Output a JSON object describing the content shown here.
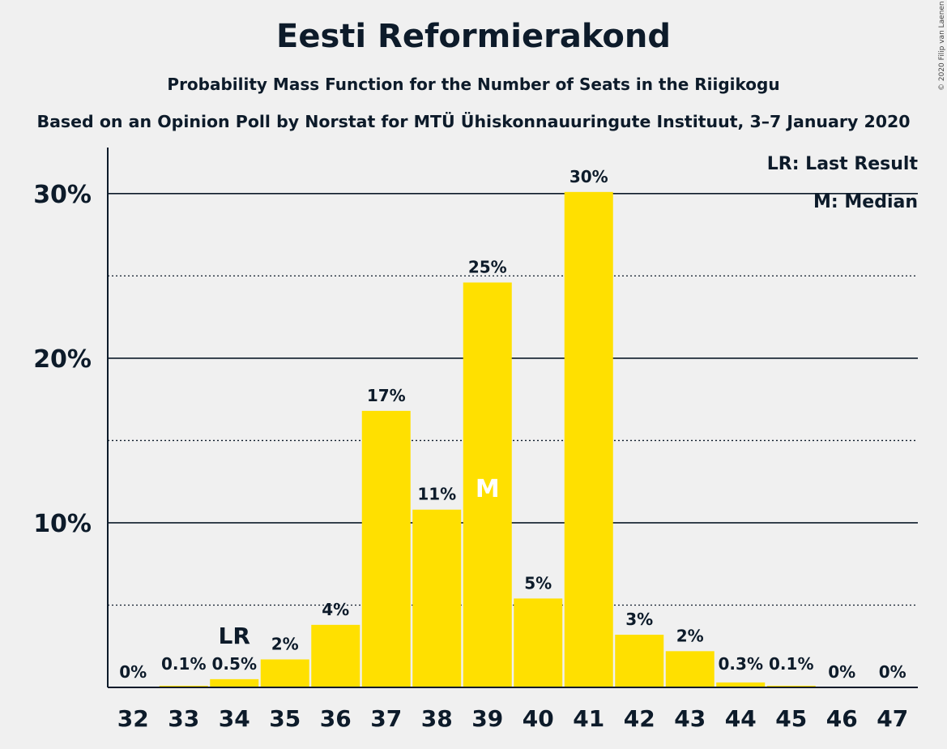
{
  "header": {
    "title": "Eesti Reformierakond",
    "subtitle": "Probability Mass Function for the Number of Seats in the Riigikogu",
    "source": "Based on an Opinion Poll by Norstat for MTÜ Ühiskonnauuringute Instituut, 3–7 January 2020",
    "copyright": "© 2020 Filip van Laenen"
  },
  "legend": {
    "lr": "LR: Last Result",
    "median": "M: Median"
  },
  "chart_data": {
    "type": "bar",
    "title": "Eesti Reformierakond",
    "subtitle": "Probability Mass Function for the Number of Seats in the Riigikogu",
    "xlabel": "",
    "ylabel": "",
    "categories": [
      "32",
      "33",
      "34",
      "35",
      "36",
      "37",
      "38",
      "39",
      "40",
      "41",
      "42",
      "43",
      "44",
      "45",
      "46",
      "47"
    ],
    "values": [
      0,
      0.1,
      0.5,
      1.7,
      3.8,
      16.8,
      10.8,
      24.6,
      5.4,
      30.1,
      3.2,
      2.2,
      0.3,
      0.1,
      0,
      0
    ],
    "labels": [
      "0%",
      "0.1%",
      "0.5%",
      "2%",
      "4%",
      "17%",
      "11%",
      "25%",
      "5%",
      "30%",
      "3%",
      "2%",
      "0.3%",
      "0.1%",
      "0%",
      "0%"
    ],
    "ylim": [
      0,
      32.8
    ],
    "yticks": [
      10,
      20,
      30
    ],
    "ytick_labels": [
      "10%",
      "20%",
      "30%"
    ],
    "minor_gridlines": [
      5,
      15,
      25
    ],
    "last_result": {
      "category": "34",
      "label": "LR"
    },
    "median": {
      "category": "39",
      "label": "M"
    },
    "bar_color": "#ffe000",
    "legend_position": "top-right",
    "grid": true
  }
}
